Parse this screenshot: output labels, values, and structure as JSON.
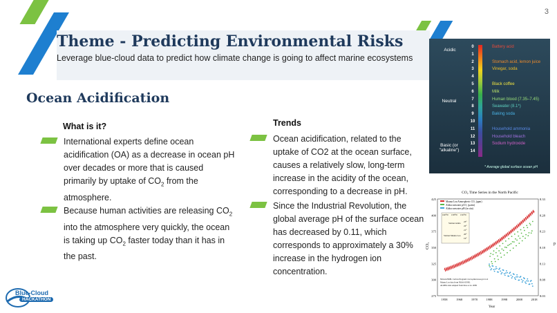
{
  "page_number": "3",
  "title": "Theme - Predicting Environmental Risks",
  "subtitle": "Leverage blue-cloud data to predict how climate change is going to affect marine ecosystems",
  "section": "Ocean Acidification",
  "what": {
    "heading": "What is it?",
    "bullet1": {
      "a": "International experts define ocean acidification (OA) as a decrease in ocean pH over decades or more that is caused primarily by uptake of CO",
      "sub": "2",
      "b": " from the atmosphere."
    },
    "bullet2": {
      "a": "Because human activities are releasing CO",
      "sub1": "2",
      "b": " into the atmosphere very quickly, the ocean is taking up CO",
      "sub2": "2",
      "c": " faster today than it has in the past."
    }
  },
  "trends": {
    "heading": "Trends",
    "bullet1": "Ocean acidification, related to the uptake of CO2 at the ocean surface, causes a relatively slow, long-term increase in the acidity of the ocean, corresponding to a decrease in pH.",
    "bullet2": "Since the Industrial Revolution, the global average pH of the surface ocean has decreased by 0.11, which corresponds to approximately a 30% increase in the hydrogen ion concentration."
  },
  "logo": {
    "line1": "Blue-Cloud",
    "line2": "HACKATHON"
  },
  "ph_scale": {
    "acidic": "Acidic",
    "neutral": "Neutral",
    "basic": "Basic (or \"alkaline\")",
    "numbers": [
      "0",
      "1",
      "2",
      "3",
      "4",
      "5",
      "6",
      "7",
      "8",
      "9",
      "10",
      "11",
      "12",
      "13",
      "14"
    ],
    "labels": [
      {
        "text": "Battery acid",
        "pos": 0,
        "color": "#e84a3a"
      },
      {
        "text": "Stomach acid, lemon juice",
        "pos": 2,
        "color": "#f08a2a"
      },
      {
        "text": "Vinegar, soda",
        "pos": 3,
        "color": "#f2c028"
      },
      {
        "text": "Black coffee",
        "pos": 5,
        "color": "#f2e640"
      },
      {
        "text": "Milk",
        "pos": 6,
        "color": "#b8e06a"
      },
      {
        "text": "Human blood (7.35–7.45)",
        "pos": 7,
        "color": "#9be07a"
      },
      {
        "text": "Seawater (8.1*)",
        "pos": 8,
        "color": "#5ed0c0"
      },
      {
        "text": "Baking soda",
        "pos": 9,
        "color": "#4ab4e8"
      },
      {
        "text": "Household ammonia",
        "pos": 11,
        "color": "#5a8ae8"
      },
      {
        "text": "Household bleach",
        "pos": 12,
        "color": "#a070e0"
      },
      {
        "text": "Sodium hydroxide",
        "pos": 13,
        "color": "#d060c8"
      }
    ],
    "footnote": "* Average global surface ocean pH"
  },
  "co2_chart": {
    "title": "CO₂ Time Series in the North Pacific",
    "legend": [
      "Mauna Loa Atmospheric CO₂ (ppm)",
      "Aloha seawater pCO₂ (µatm)",
      "Aloha seawater pH (in situ)"
    ],
    "map_labels": [
      "160°W",
      "158°W",
      "156°W",
      "Station Aloha",
      "Station Mauna Loa",
      "23°",
      "22°",
      "21°",
      "20°",
      "19°"
    ],
    "source": [
      "NOAA PMEL Carbon Program: www.pmel.noaa.gov/co2",
      "Mauna Loa data from NOAA ESRL",
      "ALOHA data adapted from Dore et al. 2009"
    ],
    "ylabel_left": "CO₂",
    "ylabel_right": "pH",
    "xlabel": "Year",
    "x_ticks": [
      "1958",
      "1968",
      "1978",
      "1988",
      "1998",
      "2008",
      "2018"
    ],
    "y_ticks_left": [
      "425",
      "400",
      "375",
      "350",
      "325",
      "300",
      "275"
    ],
    "y_ticks_right": [
      "8.33",
      "8.28",
      "8.23",
      "8.18",
      "8.13",
      "8.08",
      "8.03"
    ],
    "colors": {
      "mauna_loa": "#d62728",
      "pco2": "#58b947",
      "ph": "#3aa0d8"
    }
  }
}
